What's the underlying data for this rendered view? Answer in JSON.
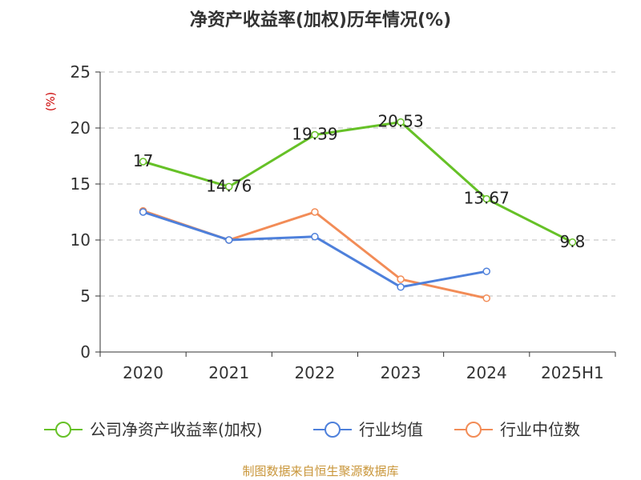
{
  "colors": {
    "company": "#66c127",
    "industry_avg": "#4e80db",
    "industry_median": "#f28c57",
    "unit": "#cc0000",
    "source": "#c9963a",
    "axis": "#333333",
    "grid": "#bbbbbb"
  },
  "footer": {
    "source": "制图数据来自恒生聚源数据库"
  },
  "chart_data": {
    "type": "line",
    "title": "净资产收益率(加权)历年情况(%)",
    "ylabel": "(%)",
    "categories": [
      "2020",
      "2021",
      "2022",
      "2023",
      "2024",
      "2025H1"
    ],
    "ylim": [
      0,
      25
    ],
    "yticks": [
      0,
      5,
      10,
      15,
      20,
      25
    ],
    "grid": true,
    "legend_position": "bottom",
    "series": [
      {
        "name": "公司净资产收益率(加权)",
        "values": [
          17,
          14.76,
          19.39,
          20.53,
          13.67,
          9.8
        ],
        "labels": [
          "17",
          "14.76",
          "19.39",
          "20.53",
          "13.67",
          "9.8"
        ]
      },
      {
        "name": "行业均值",
        "values": [
          12.5,
          10.0,
          10.3,
          5.8,
          7.2,
          null
        ]
      },
      {
        "name": "行业中位数",
        "values": [
          12.6,
          10.0,
          12.5,
          6.5,
          4.8,
          null
        ]
      }
    ]
  }
}
